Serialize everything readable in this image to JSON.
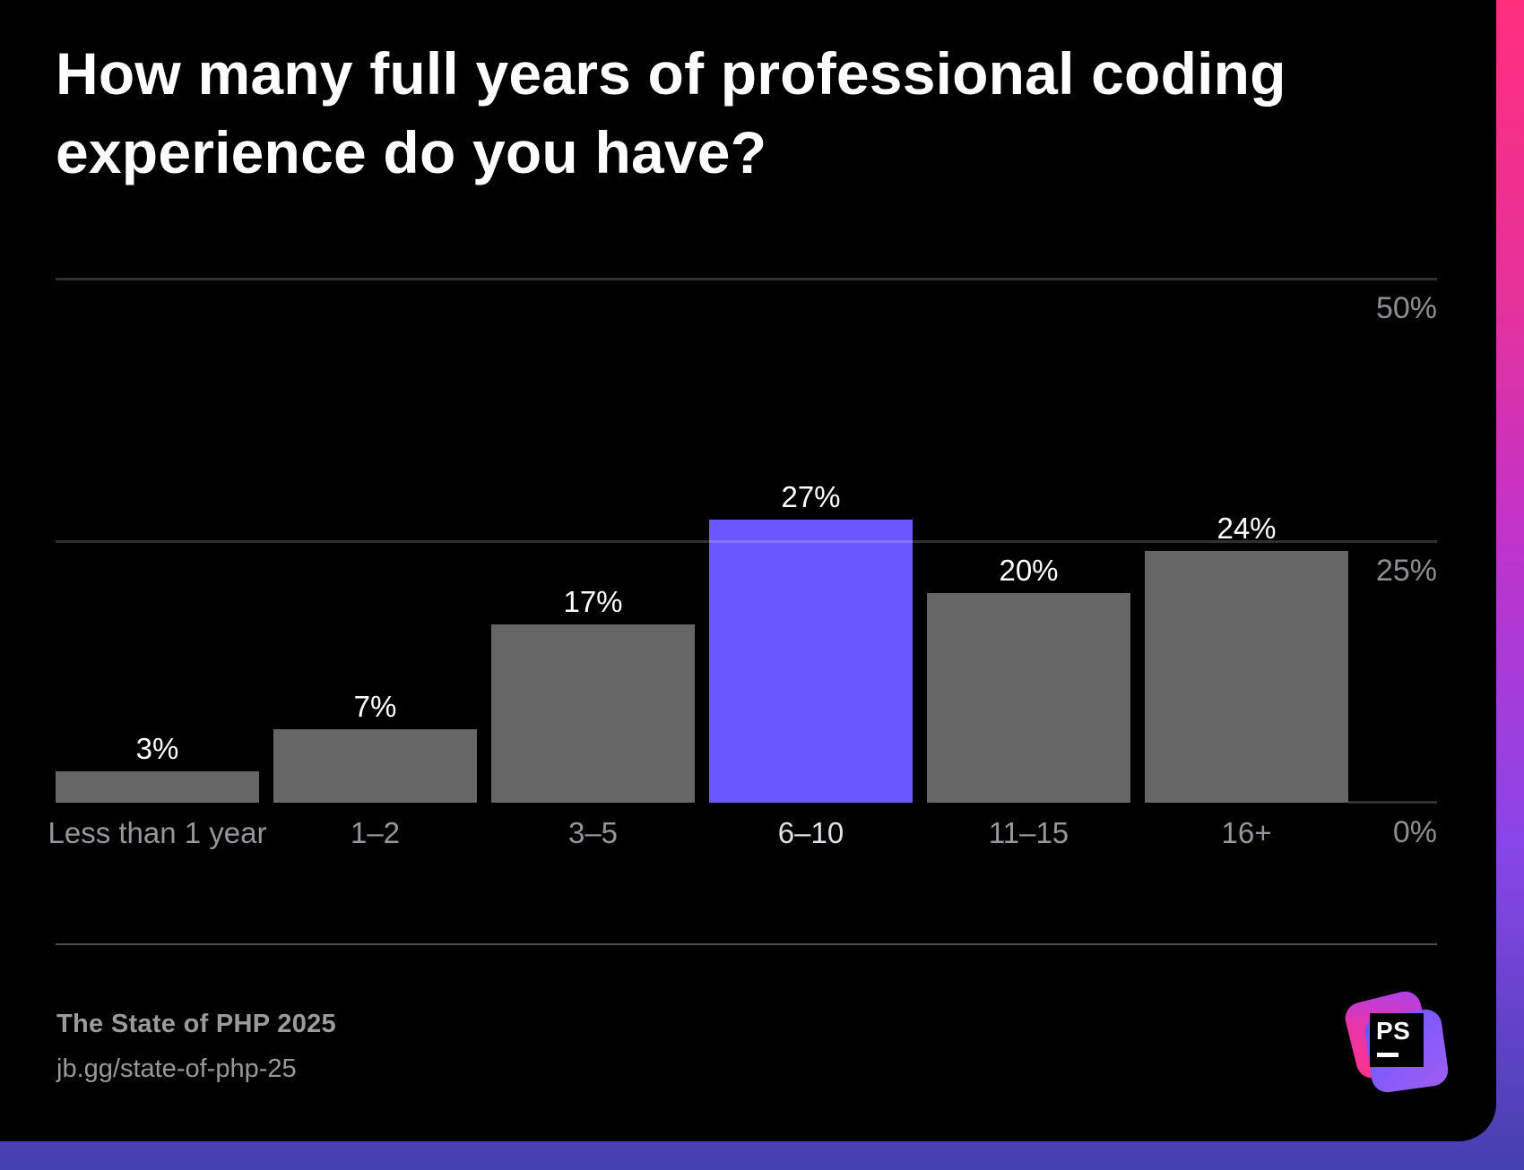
{
  "title_lines": [
    "How many full years of professional coding",
    "experience do you have?"
  ],
  "chart_data": {
    "type": "bar",
    "title": "How many full years of professional coding experience do you have?",
    "categories": [
      "Less than 1 year",
      "1–2",
      "3–5",
      "6–10",
      "11–15",
      "16+"
    ],
    "values": [
      3,
      7,
      17,
      27,
      20,
      24
    ],
    "value_labels": [
      "3%",
      "7%",
      "17%",
      "27%",
      "20%",
      "24%"
    ],
    "highlight_index": 3,
    "xlabel": "",
    "ylabel": "",
    "ylim": [
      0,
      50
    ],
    "yticks": [
      {
        "value": 50,
        "label": "50%"
      },
      {
        "value": 25,
        "label": "25%"
      },
      {
        "value": 0,
        "label": "0%"
      }
    ],
    "grid": "horizontal",
    "legend_position": "none",
    "bar_color": "#666666",
    "highlight_color": "#6B57FF"
  },
  "footer": {
    "source_title": "The State of PHP 2025",
    "source_url": "jb.gg/state-of-php-25"
  },
  "logo": {
    "monogram": "PS",
    "product": "PhpStorm"
  },
  "colors": {
    "background": "#000000",
    "accent": "#6B57FF",
    "edge_gradient_top": "#FF2E7D",
    "edge_gradient_bottom": "#4440AF",
    "text_primary": "#FFFFFF",
    "text_muted": "#96969B"
  }
}
